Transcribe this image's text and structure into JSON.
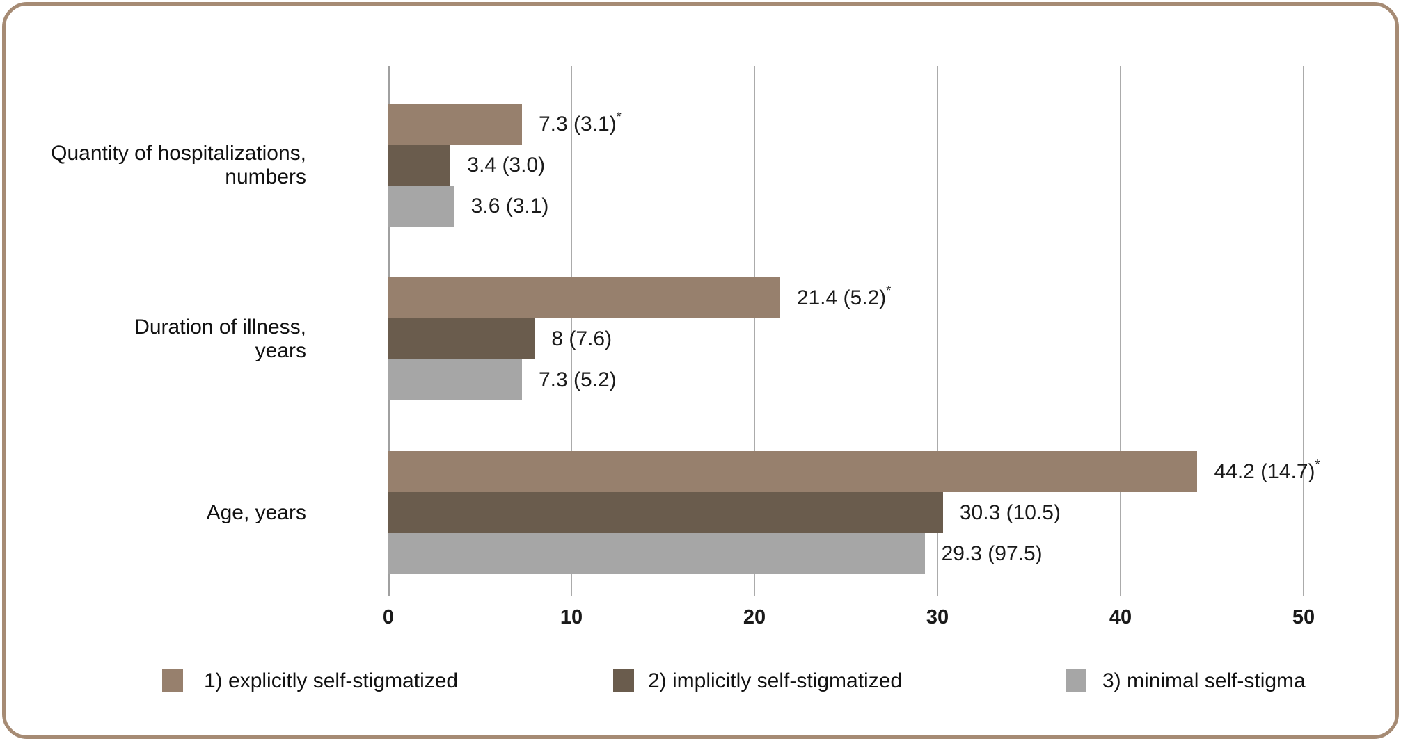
{
  "frame": {
    "border_color": "#A68B74",
    "background": "#FFFFFF"
  },
  "chart_data": {
    "type": "bar",
    "orientation": "horizontal",
    "title": "",
    "xlabel": "",
    "ylabel": "",
    "categories": [
      {
        "lines": [
          "Quantity of hospitalizations,",
          "numbers"
        ]
      },
      {
        "lines": [
          "Duration of illness,",
          "years"
        ]
      },
      {
        "lines": [
          "Age, years"
        ]
      }
    ],
    "series": [
      {
        "name": "1) explicitly self-stigmatized",
        "color": "#97806D",
        "values": [
          7.3,
          21.4,
          44.2
        ],
        "labels": [
          "7.3 (3.1)*",
          "21.4 (5.2)*",
          "44.2 (14.7)*"
        ]
      },
      {
        "name": "2) implicitly self-stigmatized",
        "color": "#6A5C4D",
        "values": [
          3.4,
          8,
          30.3
        ],
        "labels": [
          "3.4 (3.0)",
          "8 (7.6)",
          "30.3 (10.5)"
        ]
      },
      {
        "name": "3) minimal self-stigma",
        "color": "#A6A6A6",
        "values": [
          3.6,
          7.3,
          29.3
        ],
        "labels": [
          "3.6 (3.1)",
          "7.3 (5.2)",
          "29.3 (97.5)"
        ]
      }
    ],
    "xlim": [
      0,
      50
    ],
    "xticks": [
      0,
      10,
      20,
      30,
      40,
      50
    ],
    "grid": "vertical",
    "gridline_color": "#ABABAB",
    "text_color": "#1A1A1A",
    "legend_position": "bottom"
  }
}
